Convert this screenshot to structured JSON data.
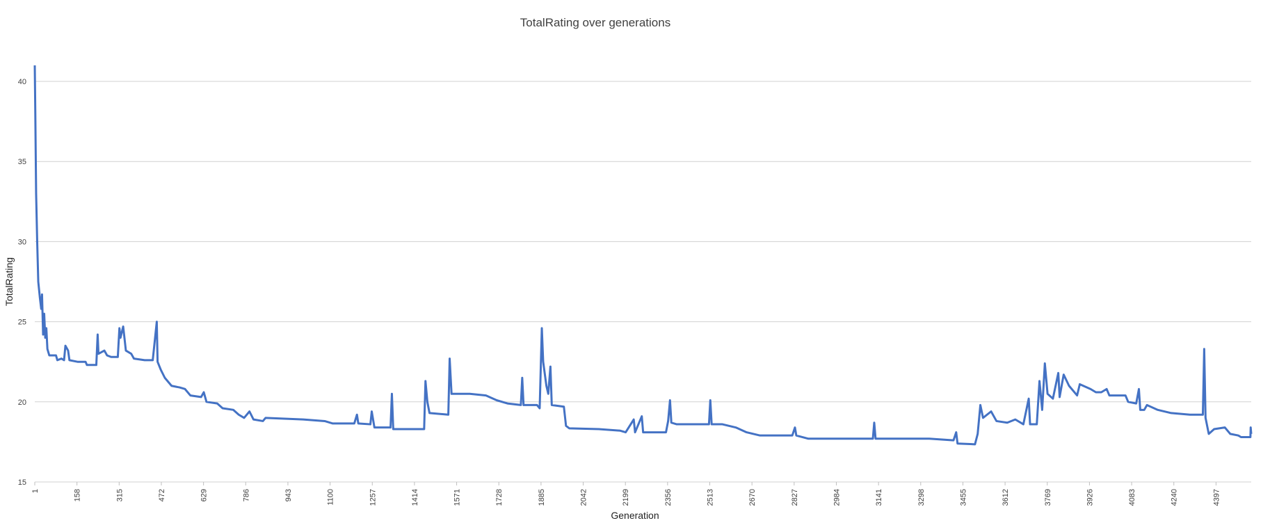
{
  "chart_data": {
    "type": "line",
    "title": "TotalRating over generations",
    "x_label": "Generation",
    "y_label": "TotalRating",
    "x": [
      1,
      3,
      6,
      10,
      14,
      20,
      25,
      28,
      32,
      36,
      40,
      44,
      48,
      55,
      80,
      85,
      100,
      110,
      115,
      125,
      130,
      160,
      190,
      195,
      230,
      235,
      238,
      260,
      270,
      285,
      310,
      316,
      320,
      330,
      340,
      360,
      370,
      410,
      440,
      455,
      458,
      470,
      485,
      510,
      540,
      560,
      580,
      620,
      630,
      640,
      680,
      700,
      740,
      760,
      780,
      800,
      815,
      850,
      860,
      930,
      1000,
      1080,
      1110,
      1190,
      1200,
      1205,
      1250,
      1255,
      1265,
      1325,
      1330,
      1335,
      1450,
      1455,
      1462,
      1470,
      1540,
      1545,
      1552,
      1620,
      1680,
      1720,
      1760,
      1810,
      1815,
      1820,
      1870,
      1880,
      1888,
      1893,
      1905,
      1912,
      1920,
      1925,
      1970,
      1978,
      1990,
      2100,
      2180,
      2200,
      2230,
      2235,
      2260,
      2265,
      2300,
      2350,
      2358,
      2365,
      2370,
      2390,
      2510,
      2515,
      2520,
      2560,
      2610,
      2650,
      2700,
      2820,
      2830,
      2835,
      2880,
      3120,
      3125,
      3130,
      3330,
      3420,
      3430,
      3435,
      3500,
      3510,
      3520,
      3530,
      3560,
      3580,
      3620,
      3650,
      3680,
      3700,
      3705,
      3730,
      3740,
      3750,
      3760,
      3770,
      3790,
      3810,
      3815,
      3830,
      3850,
      3880,
      3890,
      3930,
      3950,
      3970,
      3990,
      4000,
      4060,
      4070,
      4100,
      4110,
      4115,
      4130,
      4140,
      4180,
      4230,
      4300,
      4348,
      4353,
      4358,
      4370,
      4390,
      4430,
      4450,
      4480,
      4490,
      4525,
      4526,
      4528
    ],
    "series": [
      {
        "name": "TotalRating",
        "color": "#4472c4",
        "values": [
          41,
          38,
          33,
          30,
          27.5,
          26.5,
          25.8,
          26.7,
          24.2,
          25.5,
          24,
          24.6,
          23.3,
          22.9,
          22.9,
          22.6,
          22.7,
          22.6,
          23.5,
          23.2,
          22.6,
          22.5,
          22.5,
          22.3,
          22.3,
          24.2,
          23,
          23.2,
          22.9,
          22.8,
          22.8,
          24.6,
          24,
          24.7,
          23.2,
          23,
          22.7,
          22.6,
          22.6,
          25,
          22.5,
          22,
          21.5,
          21,
          20.9,
          20.8,
          20.4,
          20.3,
          20.6,
          20,
          19.9,
          19.6,
          19.5,
          19.2,
          19,
          19.4,
          18.9,
          18.8,
          19,
          18.95,
          18.9,
          18.8,
          18.65,
          18.65,
          19.2,
          18.65,
          18.6,
          19.4,
          18.4,
          18.4,
          20.5,
          18.3,
          18.3,
          21.3,
          20,
          19.3,
          19.2,
          22.7,
          20.5,
          20.5,
          20.4,
          20.1,
          19.9,
          19.8,
          21.5,
          19.8,
          19.8,
          19.6,
          24.6,
          22.5,
          21,
          20.5,
          22.2,
          19.8,
          19.7,
          18.5,
          18.35,
          18.3,
          18.2,
          18.1,
          18.9,
          18.1,
          19.1,
          18.1,
          18.1,
          18.1,
          18.8,
          20.1,
          18.7,
          18.6,
          18.6,
          20.1,
          18.6,
          18.6,
          18.4,
          18.1,
          17.9,
          17.9,
          18.4,
          17.9,
          17.7,
          17.7,
          18.7,
          17.7,
          17.7,
          17.6,
          18.1,
          17.4,
          17.35,
          18,
          19.8,
          19,
          19.4,
          18.8,
          18.7,
          18.9,
          18.6,
          20.2,
          18.6,
          18.6,
          21.3,
          19.5,
          22.4,
          20.5,
          20.2,
          21.8,
          20.3,
          21.7,
          21,
          20.4,
          21.1,
          20.8,
          20.6,
          20.6,
          20.8,
          20.4,
          20.4,
          20,
          19.9,
          20.8,
          19.5,
          19.5,
          19.8,
          19.5,
          19.3,
          19.2,
          19.2,
          23.3,
          19,
          18,
          18.3,
          18.4,
          18,
          17.9,
          17.8,
          17.8,
          18.4,
          18
        ]
      }
    ],
    "xlim": [
      1,
      4528
    ],
    "xticks": [
      1,
      158,
      315,
      472,
      629,
      786,
      943,
      1100,
      1257,
      1414,
      1571,
      1728,
      1885,
      2042,
      2199,
      2356,
      2513,
      2670,
      2827,
      2984,
      3141,
      3298,
      3455,
      3612,
      3769,
      3926,
      4083,
      4240,
      4397
    ],
    "ylim": [
      15,
      40
    ],
    "yticks": [
      15,
      20,
      25,
      30,
      35,
      40
    ],
    "grid": true
  }
}
